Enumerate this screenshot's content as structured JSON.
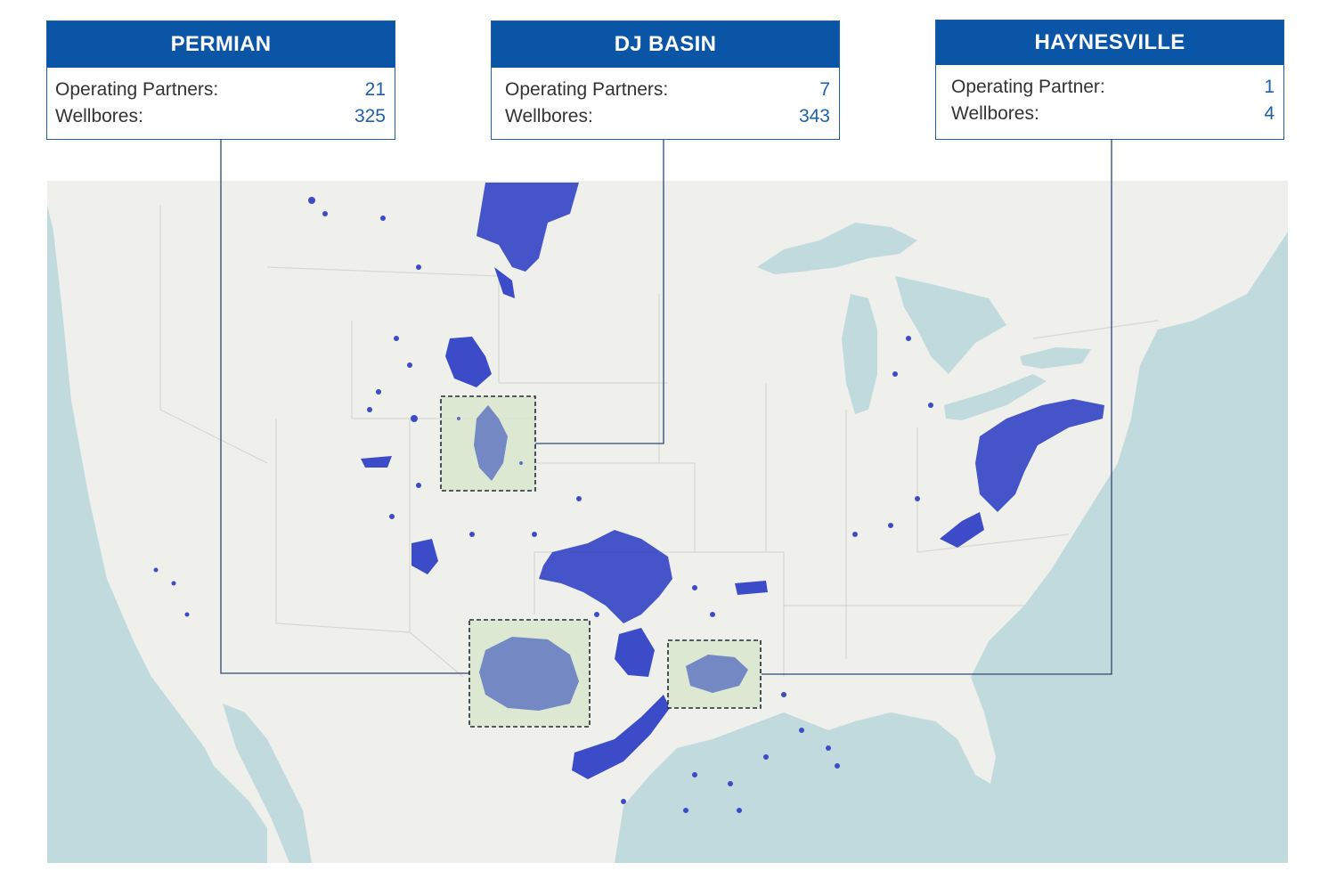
{
  "panels": [
    {
      "title": "PERMIAN",
      "rows": [
        {
          "label": "Operating Partners:",
          "value": "21"
        },
        {
          "label": "Wellbores:",
          "value": "325"
        }
      ]
    },
    {
      "title": "DJ BASIN",
      "rows": [
        {
          "label": "Operating Partners:",
          "value": "7"
        },
        {
          "label": "Wellbores:",
          "value": "343"
        }
      ]
    },
    {
      "title": "HAYNESVILLE",
      "rows": [
        {
          "label": "Operating Partner:",
          "value": "1"
        },
        {
          "label": "Wellbores:",
          "value": "4"
        }
      ]
    }
  ],
  "colors": {
    "header": "#0b55a6",
    "value_text": "#1f5ea8",
    "leader_line": "#2a4a72",
    "land": "#efefec",
    "water": "#c0dadd",
    "well_dots": "#3c4bc7",
    "highlight_fill": "#d9e6cf",
    "highlight_border": "#1e2a3a"
  },
  "highlighted_basins": [
    "DJ BASIN",
    "PERMIAN",
    "HAYNESVILLE"
  ]
}
